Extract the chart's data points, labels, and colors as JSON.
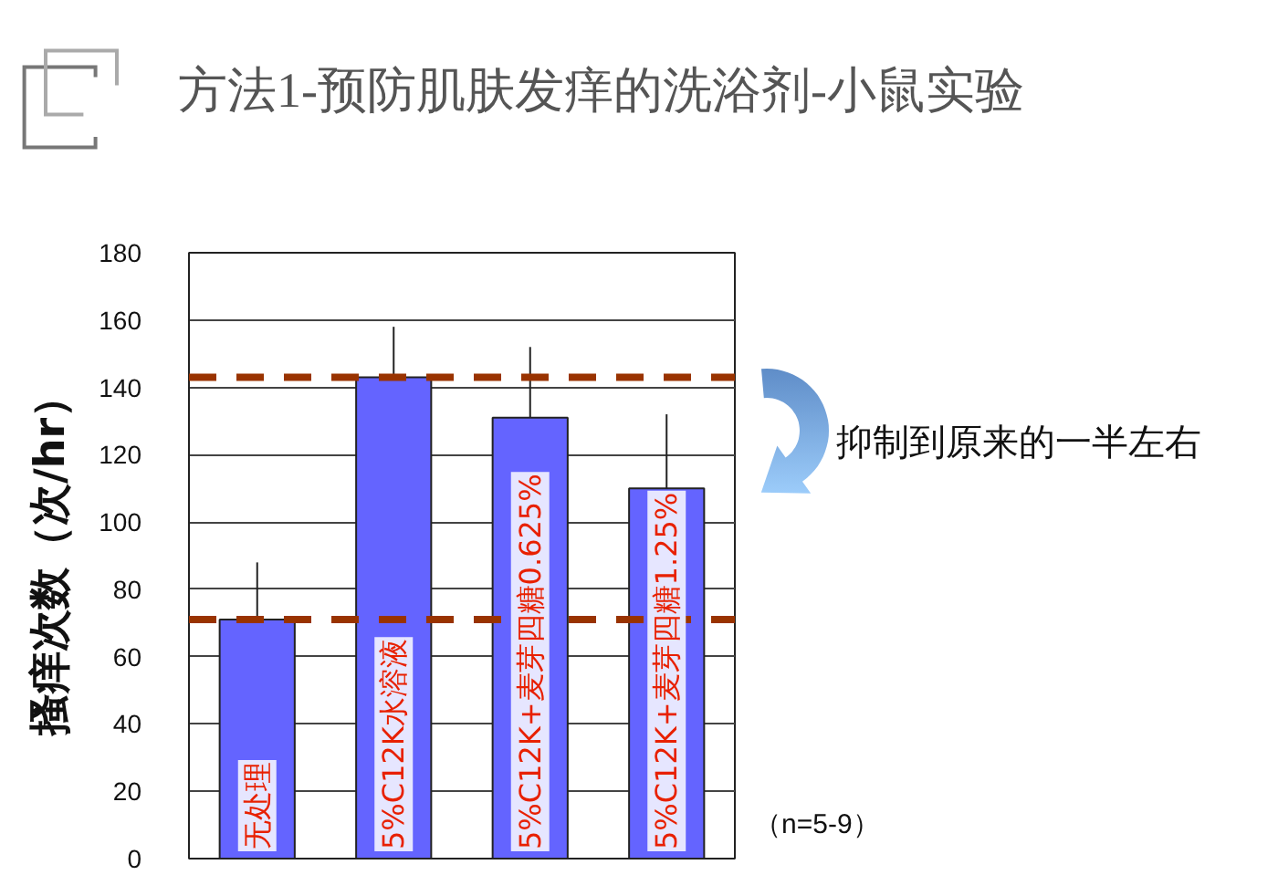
{
  "chart_data": {
    "type": "bar",
    "title": "方法1-预防肌肤发痒的洗浴剂-小鼠实验",
    "ylabel": "搔痒次数（次/hr）",
    "categories": [
      "无处理",
      "5%C12K水溶液",
      "5%C12K+麦芽四糖0.625%",
      "5%C12K+麦芽四糖1.25%"
    ],
    "values": [
      71,
      143,
      131,
      110
    ],
    "errors": [
      [
        71,
        88
      ],
      [
        143,
        158
      ],
      [
        131,
        152
      ],
      [
        110,
        132
      ]
    ],
    "color": "#6464ff",
    "ylim": [
      0,
      180
    ],
    "yticks": [
      0,
      20,
      40,
      60,
      80,
      100,
      120,
      140,
      160,
      180
    ],
    "grid": "y",
    "ref_lines": [
      {
        "axis": "y",
        "value": 143,
        "color": "#993300",
        "line_style": "dashed"
      },
      {
        "axis": "y",
        "value": 71,
        "color": "#993300",
        "line_style": "dashed"
      }
    ],
    "annotations": [
      "抑制到原来的一半左右",
      "（n=5-9）"
    ]
  }
}
